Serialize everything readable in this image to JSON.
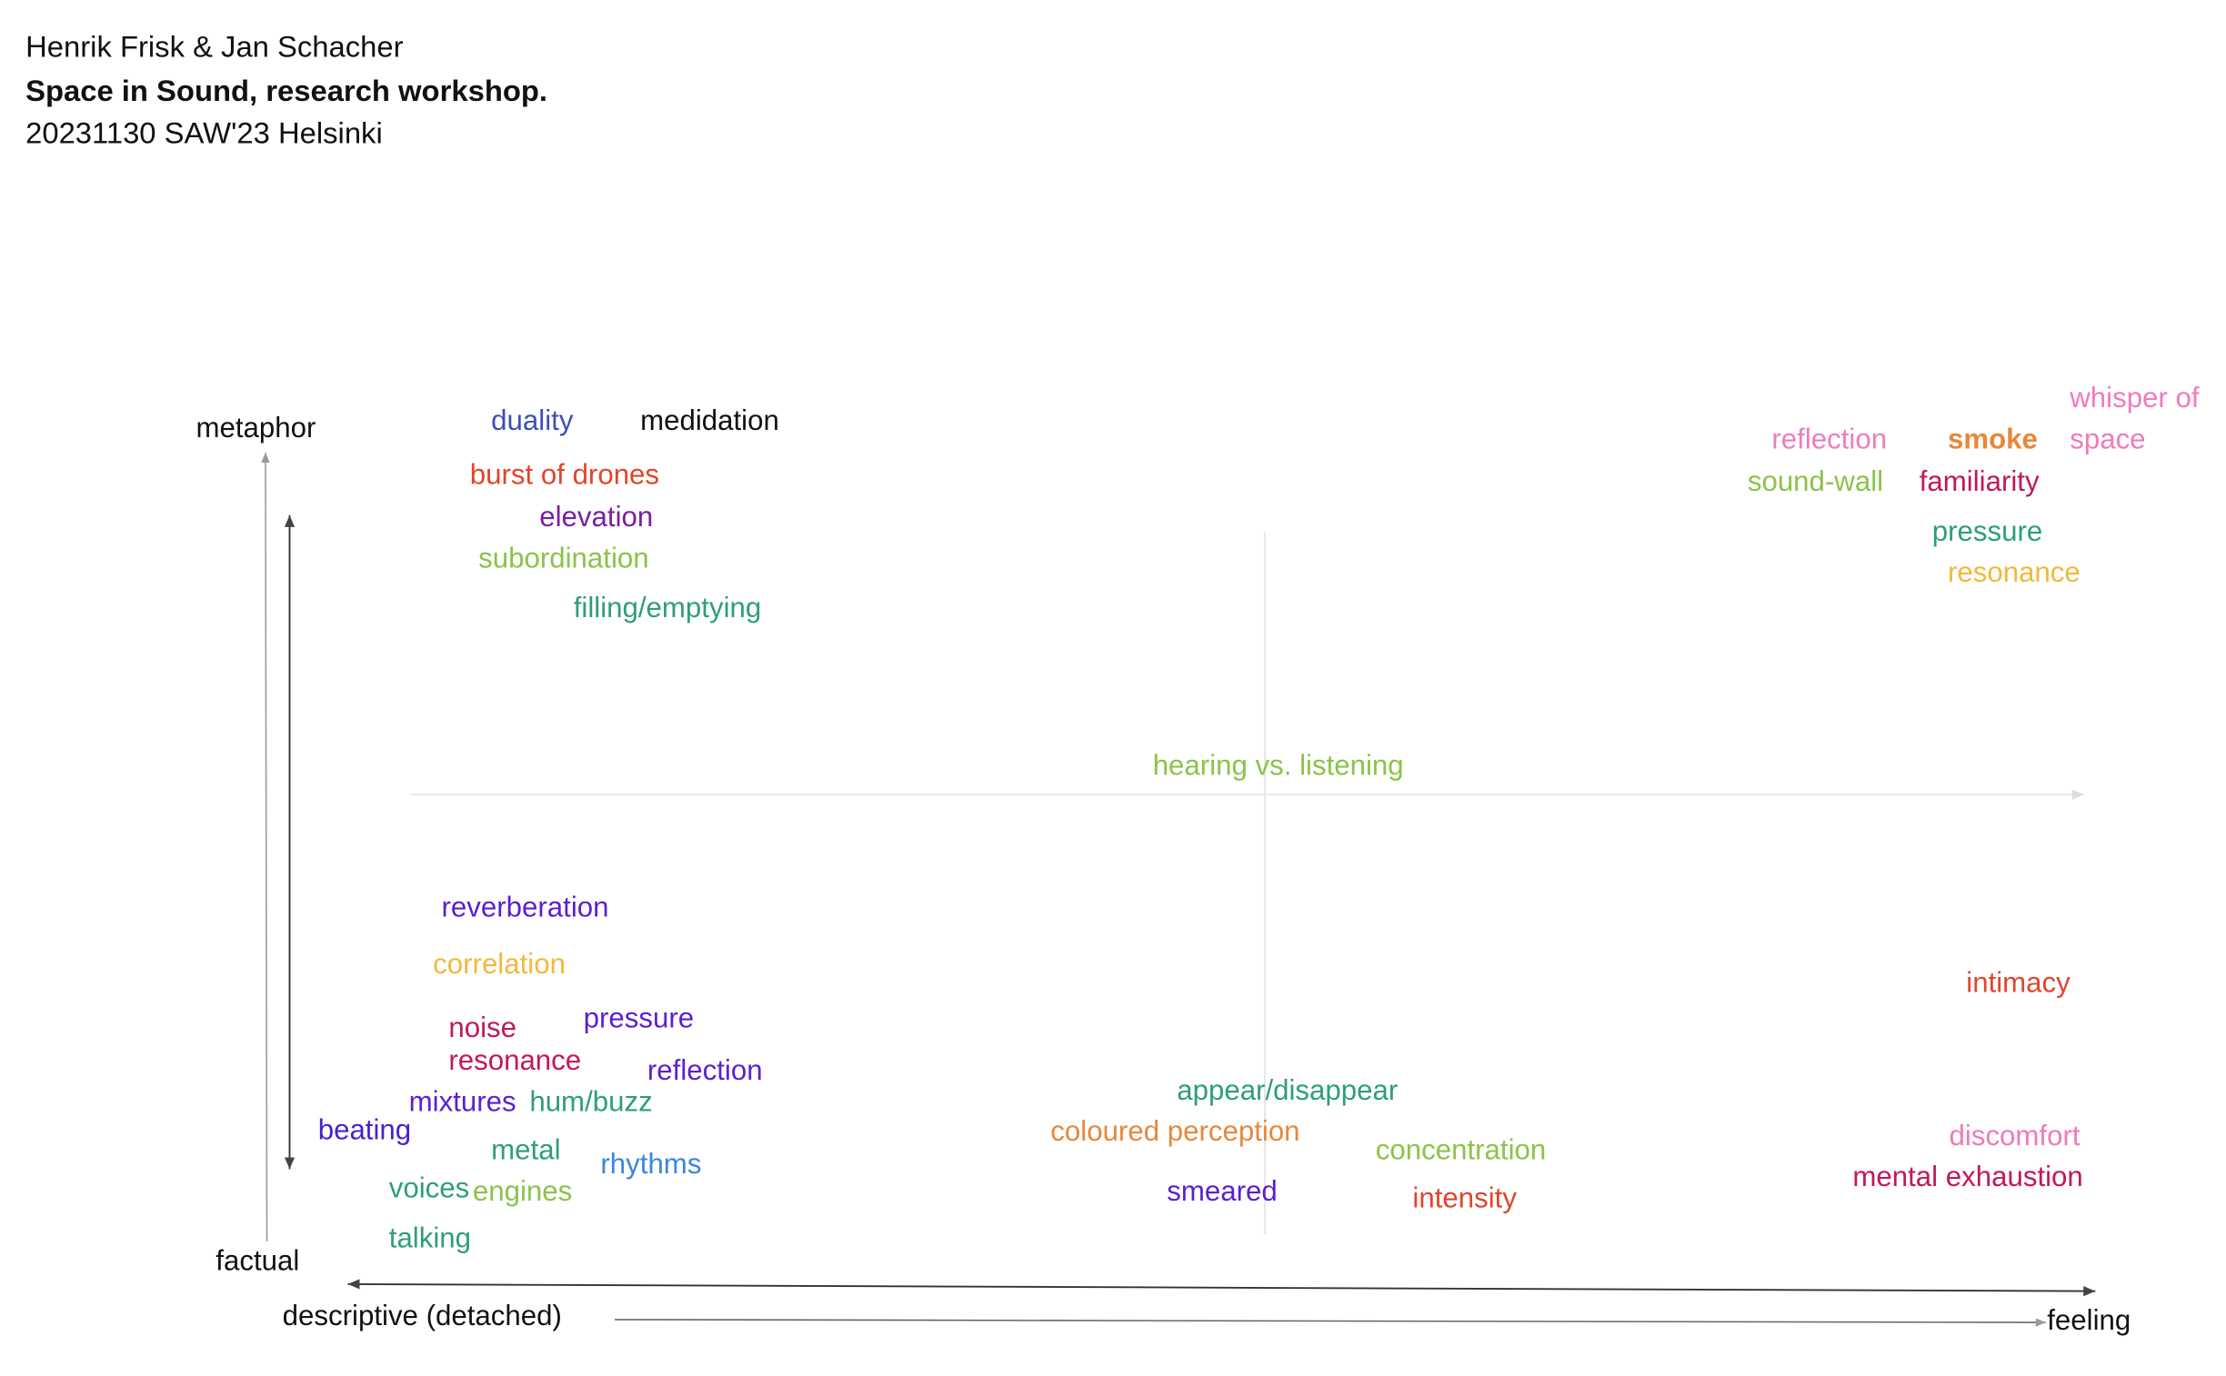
{
  "header": {
    "authors": "Henrik Frisk & Jan Schacher",
    "title": "Space in Sound, research workshop.",
    "subtitle": "20231130 SAW'23 Helsinki"
  },
  "axes": {
    "top": "metaphor",
    "bottom": "factual",
    "left": "descriptive (detached)",
    "right": "feeling"
  },
  "words": [
    {
      "text": "duality",
      "color": "#3d4fb5"
    },
    {
      "text": "medidation",
      "color": "#111111"
    },
    {
      "text": "burst of drones",
      "color": "#e0452b"
    },
    {
      "text": "elevation",
      "color": "#7a1fa2"
    },
    {
      "text": "subordination",
      "color": "#8bc34a"
    },
    {
      "text": "filling/emptying",
      "color": "#2e9e7a"
    },
    {
      "text": "hearing vs. listening",
      "color": "#8bc34a"
    },
    {
      "text": "reflection",
      "color": "#ef7bbf"
    },
    {
      "text": "smoke",
      "color": "#e8873a",
      "bold": true
    },
    {
      "text": "whisper of space",
      "color": "#ef7bbf"
    },
    {
      "text": "sound-wall",
      "color": "#8bc34a"
    },
    {
      "text": "familiarity",
      "color": "#c2185b"
    },
    {
      "text": "pressure",
      "color": "#2e9e7a"
    },
    {
      "text": "resonance",
      "color": "#f2b93b"
    },
    {
      "text": "reverberation",
      "color": "#5b1fd0"
    },
    {
      "text": "correlation",
      "color": "#f2b93b"
    },
    {
      "text": "noise",
      "color": "#c2185b"
    },
    {
      "text": "pressure",
      "color": "#5b1fd0"
    },
    {
      "text": "resonance",
      "color": "#c2185b"
    },
    {
      "text": "reflection",
      "color": "#5b1fd0"
    },
    {
      "text": "mixtures",
      "color": "#5b1fd0"
    },
    {
      "text": "hum/buzz",
      "color": "#2e9e7a"
    },
    {
      "text": "beating",
      "color": "#4a1fd0"
    },
    {
      "text": "metal",
      "color": "#2e9e7a"
    },
    {
      "text": "rhythms",
      "color": "#3a86e0"
    },
    {
      "text": "voices",
      "color": "#2e9e7a"
    },
    {
      "text": "engines",
      "color": "#8bc34a"
    },
    {
      "text": "talking",
      "color": "#2e9e7a"
    },
    {
      "text": "appear/disappear",
      "color": "#2e9e7a"
    },
    {
      "text": "coloured perception",
      "color": "#e8873a"
    },
    {
      "text": "concentration",
      "color": "#8bc34a"
    },
    {
      "text": "smeared",
      "color": "#5b1fd0"
    },
    {
      "text": "intensity",
      "color": "#e0452b"
    },
    {
      "text": "intimacy",
      "color": "#e0452b"
    },
    {
      "text": "discomfort",
      "color": "#f07ab8"
    },
    {
      "text": "mental exhaustion",
      "color": "#c2185b"
    }
  ]
}
